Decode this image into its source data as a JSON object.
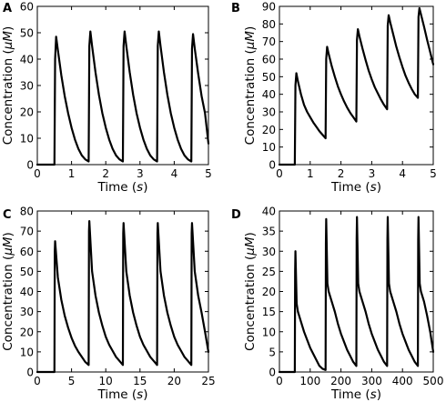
{
  "chart_data": [
    {
      "panel": "A",
      "type": "line",
      "xlabel_text": "Time",
      "xlabel_unit": "s",
      "ylabel_text": "Concentration",
      "ylabel_unit": "μM",
      "xlim": [
        0,
        5
      ],
      "ylim": [
        0,
        60
      ],
      "xticks": [
        0,
        1,
        2,
        3,
        4,
        5
      ],
      "yticks": [
        0,
        10,
        20,
        30,
        40,
        50,
        60
      ],
      "xtick_labels": [
        "0",
        "1",
        "2",
        "3",
        "4",
        "5"
      ],
      "ytick_labels": [
        "0",
        "10",
        "20",
        "30",
        "40",
        "50",
        "60"
      ],
      "series": [
        {
          "x": [
            0,
            0.5,
            0.52,
            0.55,
            0.6,
            0.7,
            0.8,
            0.9,
            1.0,
            1.1,
            1.2,
            1.3,
            1.4,
            1.5,
            1.52,
            1.55,
            1.6,
            1.7,
            1.8,
            1.9,
            2.0,
            2.1,
            2.2,
            2.3,
            2.4,
            2.5,
            2.52,
            2.55,
            2.6,
            2.7,
            2.8,
            2.9,
            3.0,
            3.1,
            3.2,
            3.3,
            3.4,
            3.5,
            3.52,
            3.55,
            3.6,
            3.7,
            3.8,
            3.9,
            4.0,
            4.1,
            4.2,
            4.3,
            4.4,
            4.5,
            4.52,
            4.55,
            4.6,
            4.7,
            4.8,
            4.9,
            5.0
          ],
          "y": [
            0,
            0,
            40,
            48.5,
            43.5,
            34,
            26,
            19.5,
            14,
            9.5,
            6,
            3.5,
            2,
            1.2,
            45,
            50.5,
            45,
            35,
            26.5,
            19.5,
            14,
            9.5,
            6,
            3.5,
            2,
            1.2,
            45,
            50.5,
            45,
            35,
            26.5,
            19.5,
            14,
            9.5,
            6,
            3.5,
            2,
            1.2,
            45,
            50.5,
            45,
            35,
            26.5,
            19.5,
            14,
            9.5,
            6,
            3.5,
            2,
            1.2,
            44,
            49.5,
            44,
            34.5,
            26,
            19.5,
            8
          ]
        }
      ]
    },
    {
      "panel": "B",
      "type": "line",
      "xlabel_text": "Time",
      "xlabel_unit": "s",
      "ylabel_text": "Concentration",
      "ylabel_unit": "μM",
      "xlim": [
        0,
        5
      ],
      "ylim": [
        0,
        90
      ],
      "xticks": [
        0,
        1,
        2,
        3,
        4,
        5
      ],
      "yticks": [
        0,
        10,
        20,
        30,
        40,
        50,
        60,
        70,
        80,
        90
      ],
      "xtick_labels": [
        "0",
        "1",
        "2",
        "3",
        "4",
        "5"
      ],
      "ytick_labels": [
        "0",
        "10",
        "20",
        "30",
        "40",
        "50",
        "60",
        "70",
        "80",
        "90"
      ],
      "series": [
        {
          "x": [
            0,
            0.5,
            0.52,
            0.55,
            0.6,
            0.7,
            0.8,
            0.9,
            1.0,
            1.1,
            1.2,
            1.3,
            1.4,
            1.5,
            1.52,
            1.55,
            1.6,
            1.7,
            1.8,
            1.9,
            2.0,
            2.1,
            2.2,
            2.3,
            2.4,
            2.5,
            2.52,
            2.55,
            2.6,
            2.7,
            2.8,
            2.9,
            3.0,
            3.1,
            3.2,
            3.3,
            3.4,
            3.5,
            3.52,
            3.55,
            3.6,
            3.7,
            3.8,
            3.9,
            4.0,
            4.1,
            4.2,
            4.3,
            4.4,
            4.5,
            4.52,
            4.55,
            4.6,
            4.7,
            4.8,
            4.9,
            5.0
          ],
          "y": [
            0,
            0,
            45,
            52,
            47.5,
            40,
            34,
            30,
            27,
            24,
            21.5,
            19,
            17,
            15,
            60,
            67,
            63,
            56,
            50,
            44.5,
            40,
            36,
            32.5,
            29.5,
            27,
            24.5,
            71,
            77,
            73,
            66,
            59.5,
            53.5,
            48.5,
            44,
            40.5,
            37,
            34,
            31.5,
            79,
            85,
            81,
            74,
            67,
            61,
            55.5,
            50.5,
            46.5,
            43,
            40,
            38,
            84,
            89,
            85.5,
            78.5,
            71,
            64,
            57
          ]
        }
      ]
    },
    {
      "panel": "C",
      "type": "line",
      "xlabel_text": "Time",
      "xlabel_unit": "s",
      "ylabel_text": "Concentration",
      "ylabel_unit": "μM",
      "xlim": [
        0,
        25
      ],
      "ylim": [
        0,
        80
      ],
      "xticks": [
        0,
        5,
        10,
        15,
        20,
        25
      ],
      "yticks": [
        0,
        10,
        20,
        30,
        40,
        50,
        60,
        70,
        80
      ],
      "xtick_labels": [
        "0",
        "5",
        "10",
        "15",
        "20",
        "25"
      ],
      "ytick_labels": [
        "0",
        "10",
        "20",
        "30",
        "40",
        "50",
        "60",
        "70",
        "80"
      ],
      "series": [
        {
          "x": [
            0,
            2.5,
            2.55,
            2.6,
            3.0,
            3.5,
            4.0,
            4.5,
            5.0,
            5.5,
            6.0,
            6.5,
            7.0,
            7.5,
            7.55,
            7.6,
            8.0,
            8.5,
            9.0,
            9.5,
            10.0,
            10.5,
            11.0,
            11.5,
            12.0,
            12.5,
            12.55,
            12.6,
            13.0,
            13.5,
            14.0,
            14.5,
            15.0,
            15.5,
            16.0,
            16.5,
            17.0,
            17.5,
            17.55,
            17.6,
            18.0,
            18.5,
            19.0,
            19.5,
            20.0,
            20.5,
            21.0,
            21.5,
            22.0,
            22.5,
            22.55,
            22.6,
            23.0,
            23.5,
            24.0,
            24.5,
            25.0
          ],
          "y": [
            0,
            0,
            60,
            65,
            47,
            36,
            28,
            22,
            17,
            13,
            10,
            7.5,
            5,
            3.5,
            70,
            75,
            50,
            38,
            29.5,
            23,
            17.5,
            13.5,
            10.5,
            7.5,
            5.5,
            3.5,
            69,
            74,
            50,
            38,
            29.5,
            23,
            17.5,
            13.5,
            10.5,
            7.5,
            5.5,
            3.5,
            69,
            74,
            50,
            38,
            29.5,
            23,
            17.5,
            13.5,
            10.5,
            7.5,
            5.5,
            3.5,
            69,
            74,
            50,
            38,
            29.5,
            20,
            10
          ]
        }
      ]
    },
    {
      "panel": "D",
      "type": "line",
      "xlabel_text": "Time",
      "xlabel_unit": "s",
      "ylabel_text": "Concentration",
      "ylabel_unit": "μM",
      "xlim": [
        0,
        500
      ],
      "ylim": [
        0,
        40
      ],
      "xticks": [
        0,
        100,
        200,
        300,
        400,
        500
      ],
      "yticks": [
        0,
        5,
        10,
        15,
        20,
        25,
        30,
        35,
        40
      ],
      "xtick_labels": [
        "0",
        "100",
        "200",
        "300",
        "400",
        "500"
      ],
      "ytick_labels": [
        "0",
        "5",
        "10",
        "15",
        "20",
        "25",
        "30",
        "35",
        "40"
      ],
      "series": [
        {
          "x": [
            0,
            50,
            51,
            52,
            56,
            60,
            70,
            80,
            90,
            100,
            110,
            120,
            130,
            140,
            150,
            151,
            152,
            156,
            160,
            170,
            180,
            190,
            200,
            210,
            220,
            230,
            240,
            250,
            251,
            252,
            256,
            260,
            270,
            280,
            290,
            300,
            310,
            320,
            330,
            340,
            350,
            351,
            352,
            356,
            360,
            370,
            380,
            390,
            400,
            410,
            420,
            430,
            440,
            450,
            451,
            452,
            456,
            460,
            470,
            480,
            490,
            500
          ],
          "y": [
            0,
            0,
            25,
            30,
            17,
            15,
            12.5,
            10,
            8,
            6,
            4.5,
            3,
            1.5,
            0.8,
            0.5,
            32,
            38,
            22,
            20,
            17.5,
            15,
            12,
            9.5,
            7.5,
            5.5,
            4,
            2.5,
            1.5,
            33,
            38.5,
            22,
            20,
            17.5,
            15,
            12,
            9.5,
            7.5,
            5.5,
            4,
            2.5,
            1.5,
            33,
            38.5,
            22,
            20,
            17.5,
            15,
            12,
            9.5,
            7.5,
            5.5,
            4,
            2.5,
            1.5,
            33,
            38.5,
            22,
            20,
            17.5,
            14,
            10,
            5
          ]
        }
      ]
    }
  ]
}
